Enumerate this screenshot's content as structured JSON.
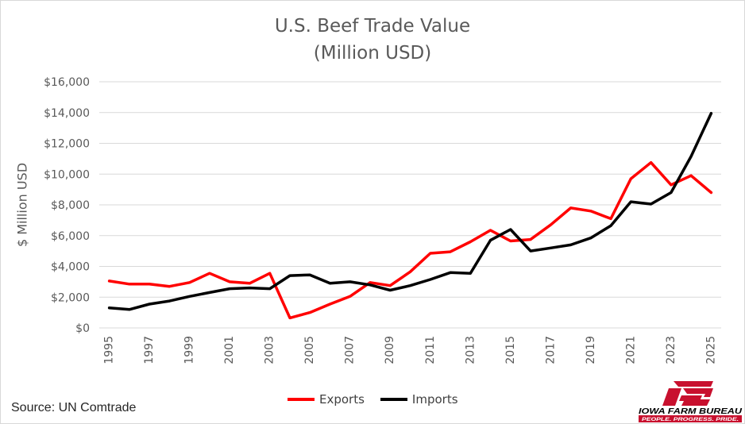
{
  "title_line1": "U.S. Beef Trade Value",
  "title_line2": "(Million USD)",
  "source": "Source: UN Comtrade",
  "logo": {
    "name": "IOWA FARM BUREAU",
    "tagline": "PEOPLE. PROGRESS. PRIDE.",
    "mark": "FB",
    "color": "#c8102e"
  },
  "chart_data": {
    "type": "line",
    "title": "U.S. Beef Trade Value (Million USD)",
    "xlabel": "",
    "ylabel": "$ Million USD",
    "ylim": [
      0,
      16000
    ],
    "yticks": [
      0,
      2000,
      4000,
      6000,
      8000,
      10000,
      12000,
      14000,
      16000
    ],
    "ytick_labels": [
      "$0",
      "$2,000",
      "$4,000",
      "$6,000",
      "$8,000",
      "$10,000",
      "$12,000",
      "$14,000",
      "$16,000"
    ],
    "x": [
      1995,
      1996,
      1997,
      1998,
      1999,
      2000,
      2001,
      2002,
      2003,
      2004,
      2005,
      2006,
      2007,
      2008,
      2009,
      2010,
      2011,
      2012,
      2013,
      2014,
      2015,
      2016,
      2017,
      2018,
      2019,
      2020,
      2021,
      2022,
      2023,
      2024,
      2025
    ],
    "xtick_labels": [
      "1995",
      "1997",
      "1999",
      "2001",
      "2003",
      "2005",
      "2007",
      "2009",
      "2011",
      "2013",
      "2015",
      "2017",
      "2019",
      "2021",
      "2023",
      "2025"
    ],
    "grid": true,
    "legend_position": "bottom",
    "series": [
      {
        "name": "Exports",
        "color": "#ff0000",
        "values": [
          3050,
          2850,
          2850,
          2700,
          2950,
          3550,
          3000,
          2900,
          3550,
          650,
          1000,
          1550,
          2050,
          2950,
          2750,
          3650,
          4850,
          4950,
          5600,
          6350,
          5650,
          5750,
          6700,
          7800,
          7600,
          7100,
          9700,
          10750,
          9300,
          9900,
          8800
        ]
      },
      {
        "name": "Imports",
        "color": "#000000",
        "values": [
          1300,
          1200,
          1550,
          1750,
          2050,
          2300,
          2550,
          2600,
          2550,
          3400,
          3450,
          2900,
          3000,
          2800,
          2450,
          2750,
          3150,
          3600,
          3550,
          5700,
          6400,
          5000,
          5200,
          5400,
          5850,
          6650,
          8200,
          8050,
          8800,
          11150,
          13950
        ]
      }
    ]
  }
}
